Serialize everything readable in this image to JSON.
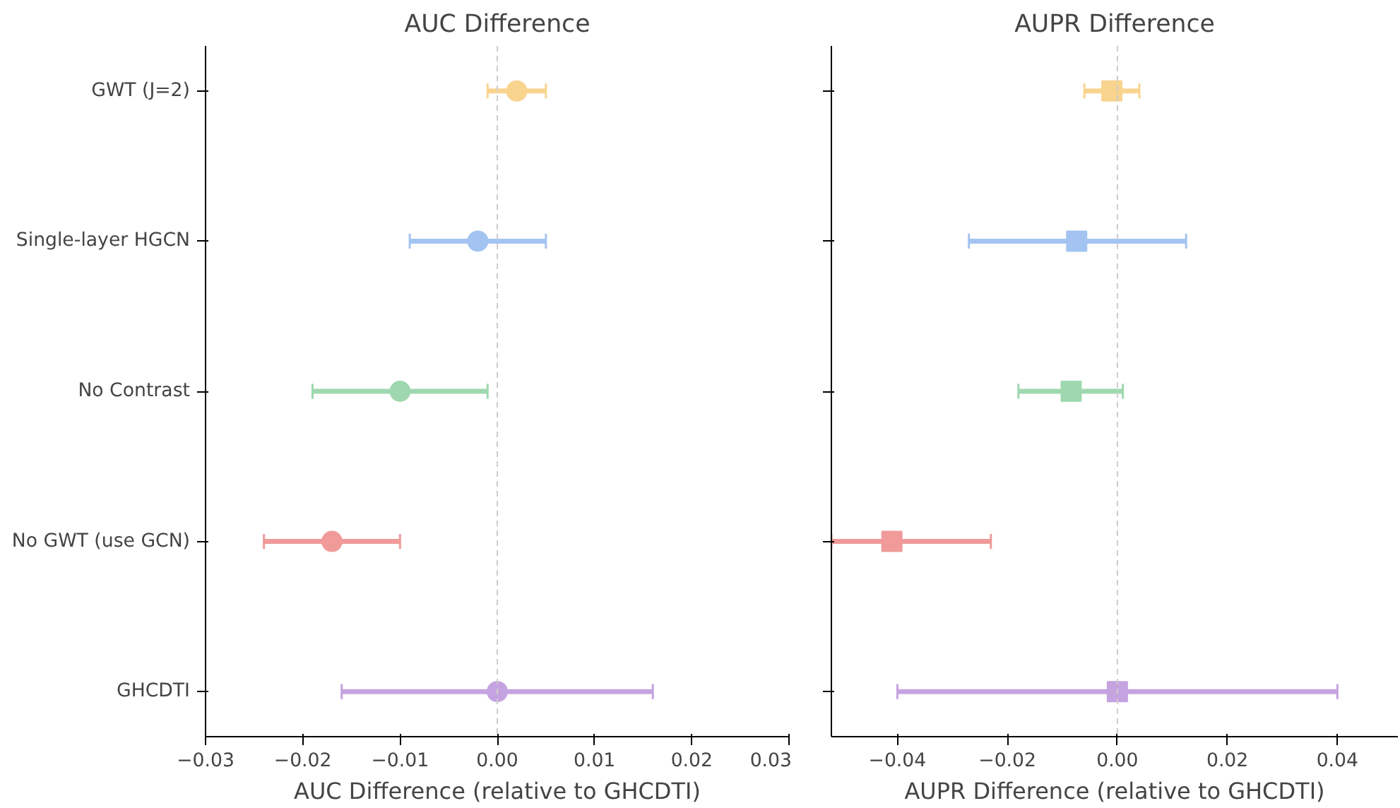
{
  "chart_data": [
    {
      "type": "scatter",
      "orientation": "horizontal",
      "title": "AUC Difference",
      "xlabel": "AUC Difference (relative to GHCDTI)",
      "categories": [
        "GWT (J=2)",
        "Single-layer HGCN",
        "No Contrast",
        "No GWT (use GCN)",
        "GHCDTI"
      ],
      "values": [
        0.002,
        -0.002,
        -0.01,
        -0.017,
        0.0
      ],
      "errors": [
        [
          -0.001,
          0.005
        ],
        [
          -0.009,
          0.005
        ],
        [
          -0.019,
          -0.001
        ],
        [
          -0.024,
          -0.01
        ],
        [
          -0.016,
          0.016
        ]
      ],
      "colors": [
        "#f9d48f",
        "#a3c4f0",
        "#9fd8b0",
        "#f09a9a",
        "#c5a3e0"
      ],
      "marker": "circle",
      "xlim": [
        -0.03,
        0.03
      ],
      "xticks": [
        {
          "value": -0.03,
          "label": "−0.03"
        },
        {
          "value": -0.02,
          "label": "−0.02"
        },
        {
          "value": -0.01,
          "label": "−0.01"
        },
        {
          "value": 0,
          "label": "0.00"
        },
        {
          "value": 0.01,
          "label": "0.01"
        },
        {
          "value": 0.02,
          "label": "0.02"
        },
        {
          "value": 0.03,
          "label": "0.03"
        }
      ],
      "ref_lines": [
        {
          "axis": "x",
          "value": 0,
          "color": "#cccccc",
          "line_style": "dashed"
        }
      ]
    },
    {
      "type": "scatter",
      "orientation": "horizontal",
      "title": "AUPR Difference",
      "xlabel": "AUPR Difference (relative to GHCDTI)",
      "categories": [
        null,
        null,
        null,
        null,
        null
      ],
      "values": [
        -0.001,
        -0.0074,
        -0.0084,
        -0.041,
        0.0
      ],
      "errors": [
        [
          -0.006,
          0.004
        ],
        [
          -0.027,
          0.0125
        ],
        [
          -0.018,
          0.001
        ],
        [
          -0.052,
          -0.023
        ],
        [
          -0.04,
          0.04
        ]
      ],
      "colors": [
        "#f9d48f",
        "#a3c4f0",
        "#9fd8b0",
        "#f09a9a",
        "#c5a3e0"
      ],
      "marker": "square",
      "xlim": [
        -0.052,
        0.051
      ],
      "xticks": [
        {
          "value": -0.04,
          "label": "−0.04"
        },
        {
          "value": -0.02,
          "label": "−0.02"
        },
        {
          "value": 0,
          "label": "0.00"
        },
        {
          "value": 0.02,
          "label": "0.02"
        },
        {
          "value": 0.04,
          "label": "0.04"
        }
      ],
      "ref_lines": [
        {
          "axis": "x",
          "value": 0,
          "color": "#cccccc",
          "line_style": "dashed"
        }
      ],
      "tick_labels": "x"
    }
  ]
}
